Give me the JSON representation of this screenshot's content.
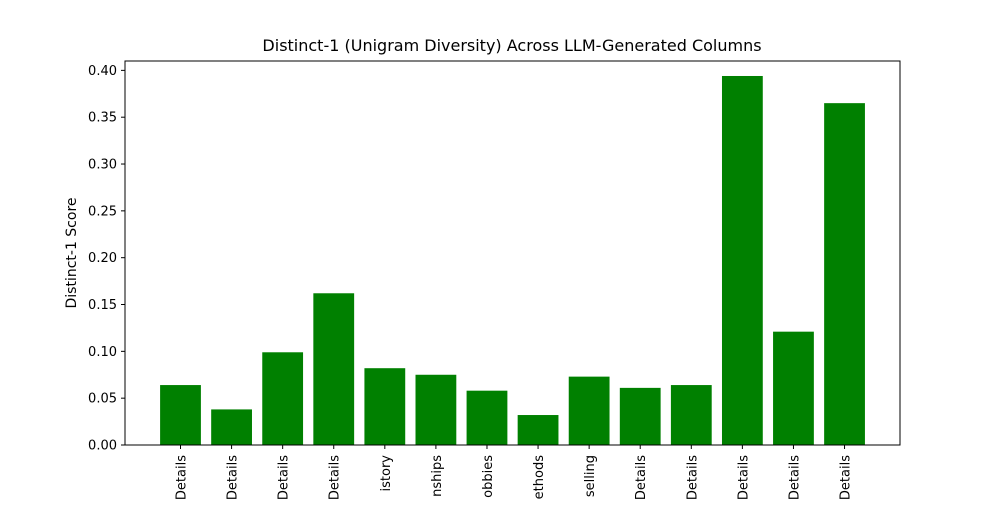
{
  "chart_data": {
    "type": "bar",
    "title": "Distinct-1 (Unigram Diversity) Across LLM-Generated Columns",
    "xlabel": "",
    "ylabel": "Distinct-1 Score",
    "ylim": [
      0,
      0.41
    ],
    "yticks": [
      0.0,
      0.05,
      0.1,
      0.15,
      0.2,
      0.25,
      0.3,
      0.35,
      0.4
    ],
    "ytick_labels": [
      "0.00",
      "0.05",
      "0.10",
      "0.15",
      "0.20",
      "0.25",
      "0.30",
      "0.35",
      "0.40"
    ],
    "categories": [
      "Details",
      "Details",
      "Details",
      "Details",
      "istory",
      "nships",
      "obbies",
      "ethods",
      "selling",
      "Details",
      "Details",
      "Details",
      "Details",
      "Details"
    ],
    "values": [
      0.064,
      0.038,
      0.099,
      0.162,
      0.082,
      0.075,
      0.058,
      0.032,
      0.073,
      0.061,
      0.064,
      0.394,
      0.121,
      0.365
    ],
    "bar_color": "#008000",
    "grid": false,
    "legend": "none"
  }
}
